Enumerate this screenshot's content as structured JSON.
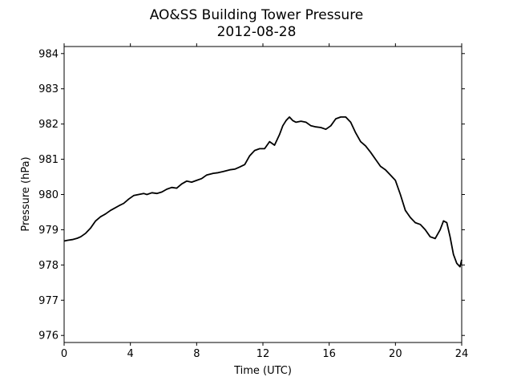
{
  "chart_data": {
    "type": "line",
    "title": "AO&SS Building Tower Pressure",
    "subtitle": "2012-08-28",
    "xlabel": "Time (UTC)",
    "ylabel": "Pressure (hPa)",
    "xlim": [
      0,
      24
    ],
    "ylim": [
      975.8,
      984.2
    ],
    "xticks": [
      0,
      4,
      8,
      12,
      16,
      20,
      24
    ],
    "yticks": [
      976,
      977,
      978,
      979,
      980,
      981,
      982,
      983,
      984
    ],
    "grid": false,
    "line_color": "#000000",
    "series": [
      {
        "x": [
          0,
          0.2,
          0.5,
          0.8,
          1.0,
          1.3,
          1.6,
          1.9,
          2.2,
          2.5,
          2.8,
          3.0,
          3.3,
          3.6,
          3.9,
          4.2,
          4.5,
          4.8,
          5.0,
          5.3,
          5.6,
          5.9,
          6.2,
          6.5,
          6.8,
          7.1,
          7.4,
          7.7,
          8.0,
          8.3,
          8.6,
          9.0,
          9.3,
          9.6,
          10.0,
          10.3,
          10.6,
          10.9,
          11.2,
          11.5,
          11.8,
          12.1,
          12.4,
          12.7,
          13.0,
          13.2,
          13.4,
          13.6,
          13.8,
          14.0,
          14.3,
          14.6,
          14.9,
          15.2,
          15.5,
          15.8,
          16.1,
          16.4,
          16.7,
          17.0,
          17.3,
          17.6,
          17.9,
          18.2,
          18.5,
          18.8,
          19.1,
          19.4,
          19.7,
          20.0,
          20.3,
          20.6,
          20.9,
          21.2,
          21.5,
          21.8,
          22.1,
          22.4,
          22.7,
          22.9,
          23.1,
          23.3,
          23.5,
          23.7,
          23.9,
          24.0
        ],
        "y": [
          978.68,
          978.7,
          978.72,
          978.76,
          978.8,
          978.9,
          979.05,
          979.25,
          979.37,
          979.45,
          979.55,
          979.6,
          979.68,
          979.75,
          979.87,
          979.97,
          980.0,
          980.03,
          980.0,
          980.05,
          980.03,
          980.07,
          980.15,
          980.2,
          980.18,
          980.3,
          980.38,
          980.35,
          980.4,
          980.45,
          980.55,
          980.6,
          980.62,
          980.65,
          980.7,
          980.72,
          980.78,
          980.85,
          981.1,
          981.25,
          981.3,
          981.3,
          981.5,
          981.4,
          981.7,
          981.95,
          982.1,
          982.2,
          982.1,
          982.05,
          982.08,
          982.05,
          981.95,
          981.92,
          981.9,
          981.85,
          981.95,
          982.15,
          982.2,
          982.2,
          982.05,
          981.75,
          981.5,
          981.38,
          981.2,
          981.0,
          980.8,
          980.7,
          980.55,
          980.4,
          980.0,
          979.55,
          979.35,
          979.2,
          979.15,
          979.0,
          978.8,
          978.75,
          979.0,
          979.25,
          979.2,
          978.8,
          978.3,
          978.05,
          977.95,
          978.15
        ]
      }
    ]
  }
}
